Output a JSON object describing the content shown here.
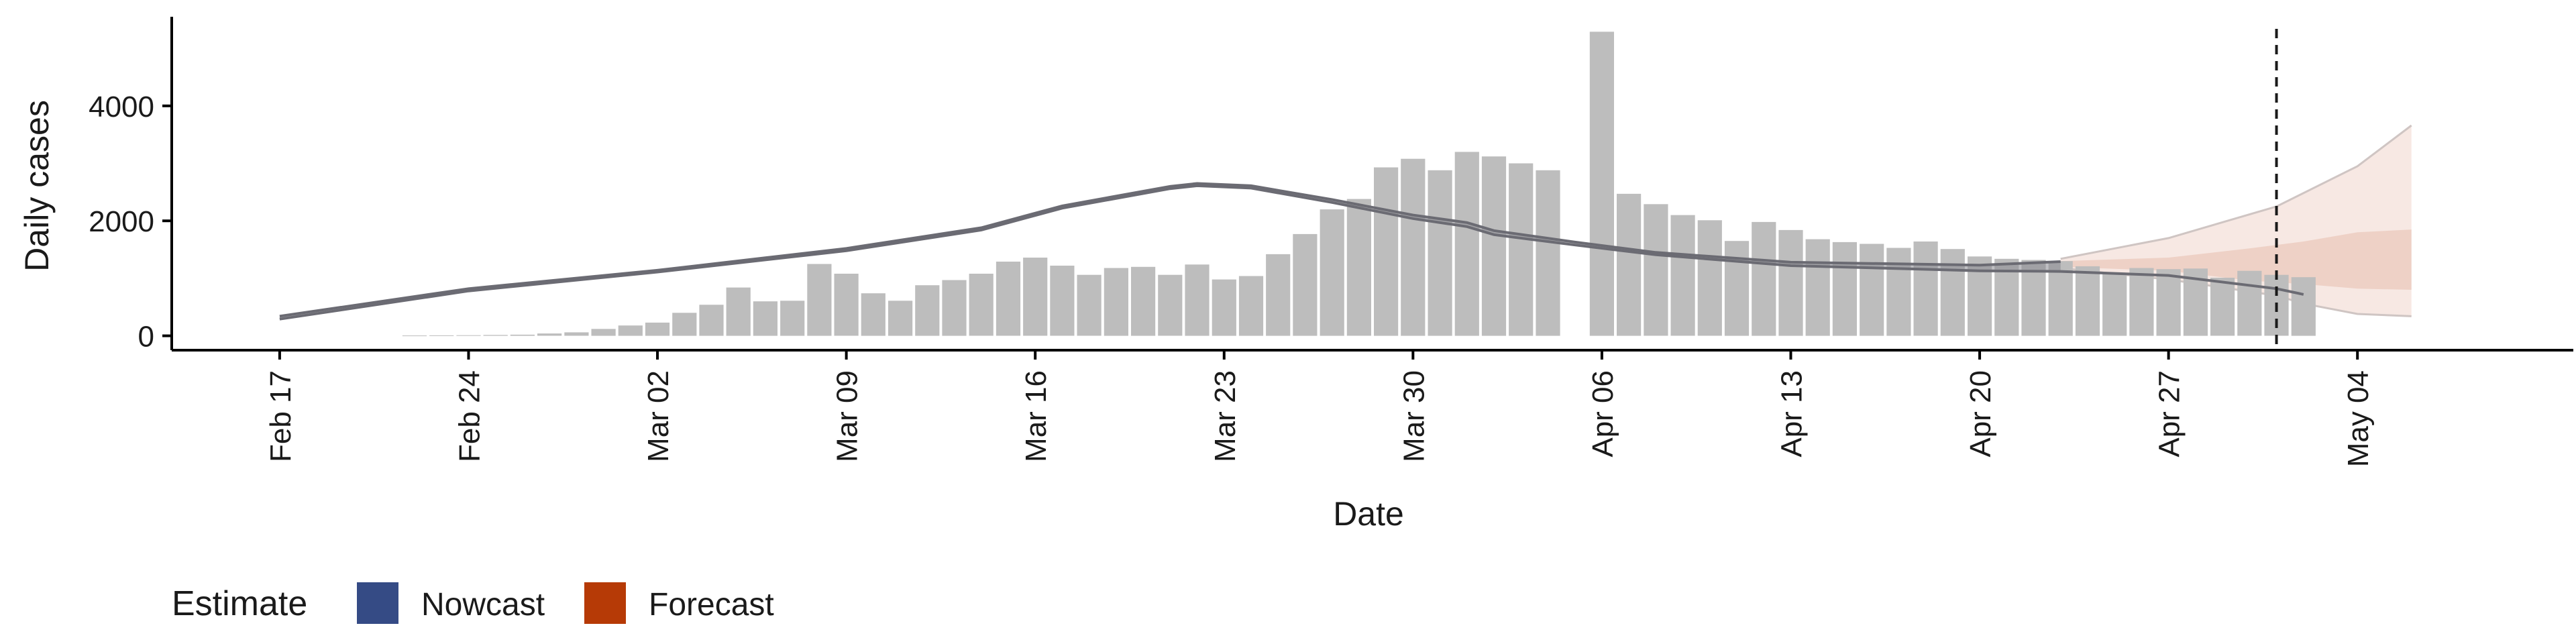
{
  "chart_data": {
    "type": "bar",
    "xlabel": "Date",
    "ylabel": "Daily cases",
    "x_axis": {
      "type": "date",
      "start": "2020-02-17",
      "ticks": [
        {
          "date": "2020-02-17",
          "label": "Feb 17"
        },
        {
          "date": "2020-02-24",
          "label": "Feb 24"
        },
        {
          "date": "2020-03-02",
          "label": "Mar 02"
        },
        {
          "date": "2020-03-09",
          "label": "Mar 09"
        },
        {
          "date": "2020-03-16",
          "label": "Mar 16"
        },
        {
          "date": "2020-03-23",
          "label": "Mar 23"
        },
        {
          "date": "2020-03-30",
          "label": "Mar 30"
        },
        {
          "date": "2020-04-06",
          "label": "Apr 06"
        },
        {
          "date": "2020-04-13",
          "label": "Apr 13"
        },
        {
          "date": "2020-04-20",
          "label": "Apr 20"
        },
        {
          "date": "2020-04-27",
          "label": "Apr 27"
        },
        {
          "date": "2020-05-04",
          "label": "May 04"
        }
      ],
      "range": [
        "2020-02-13",
        "2020-05-12"
      ]
    },
    "y_axis": {
      "ticks": [
        {
          "value": 0,
          "label": "0"
        },
        {
          "value": 2000,
          "label": "2000"
        },
        {
          "value": 4000,
          "label": "4000"
        }
      ],
      "range": [
        -250,
        5550
      ]
    },
    "grid": false,
    "vline_date": "2020-05-01",
    "bars": [
      {
        "date": "2020-02-22",
        "value": 5
      },
      {
        "date": "2020-02-23",
        "value": 8
      },
      {
        "date": "2020-02-24",
        "value": 10
      },
      {
        "date": "2020-02-25",
        "value": 15
      },
      {
        "date": "2020-02-26",
        "value": 20
      },
      {
        "date": "2020-02-27",
        "value": 40
      },
      {
        "date": "2020-02-28",
        "value": 60
      },
      {
        "date": "2020-02-29",
        "value": 120
      },
      {
        "date": "2020-03-01",
        "value": 180
      },
      {
        "date": "2020-03-02",
        "value": 230
      },
      {
        "date": "2020-03-03",
        "value": 400
      },
      {
        "date": "2020-03-04",
        "value": 540
      },
      {
        "date": "2020-03-05",
        "value": 840
      },
      {
        "date": "2020-03-06",
        "value": 600
      },
      {
        "date": "2020-03-07",
        "value": 610
      },
      {
        "date": "2020-03-08",
        "value": 1250
      },
      {
        "date": "2020-03-09",
        "value": 1080
      },
      {
        "date": "2020-03-10",
        "value": 740
      },
      {
        "date": "2020-03-11",
        "value": 610
      },
      {
        "date": "2020-03-12",
        "value": 880
      },
      {
        "date": "2020-03-13",
        "value": 970
      },
      {
        "date": "2020-03-14",
        "value": 1080
      },
      {
        "date": "2020-03-15",
        "value": 1290
      },
      {
        "date": "2020-03-16",
        "value": 1360
      },
      {
        "date": "2020-03-17",
        "value": 1220
      },
      {
        "date": "2020-03-18",
        "value": 1060
      },
      {
        "date": "2020-03-19",
        "value": 1180
      },
      {
        "date": "2020-03-20",
        "value": 1200
      },
      {
        "date": "2020-03-21",
        "value": 1060
      },
      {
        "date": "2020-03-22",
        "value": 1240
      },
      {
        "date": "2020-03-23",
        "value": 980
      },
      {
        "date": "2020-03-24",
        "value": 1040
      },
      {
        "date": "2020-03-25",
        "value": 1420
      },
      {
        "date": "2020-03-26",
        "value": 1770
      },
      {
        "date": "2020-03-27",
        "value": 2200
      },
      {
        "date": "2020-03-28",
        "value": 2380
      },
      {
        "date": "2020-03-29",
        "value": 2930
      },
      {
        "date": "2020-03-30",
        "value": 3080
      },
      {
        "date": "2020-03-31",
        "value": 2880
      },
      {
        "date": "2020-04-01",
        "value": 3200
      },
      {
        "date": "2020-04-02",
        "value": 3120
      },
      {
        "date": "2020-04-03",
        "value": 3000
      },
      {
        "date": "2020-04-04",
        "value": 2880
      },
      {
        "date": "2020-04-06",
        "value": 5290
      },
      {
        "date": "2020-04-07",
        "value": 2470
      },
      {
        "date": "2020-04-08",
        "value": 2290
      },
      {
        "date": "2020-04-09",
        "value": 2100
      },
      {
        "date": "2020-04-10",
        "value": 2010
      },
      {
        "date": "2020-04-11",
        "value": 1650
      },
      {
        "date": "2020-04-12",
        "value": 1980
      },
      {
        "date": "2020-04-13",
        "value": 1840
      },
      {
        "date": "2020-04-14",
        "value": 1680
      },
      {
        "date": "2020-04-15",
        "value": 1630
      },
      {
        "date": "2020-04-16",
        "value": 1600
      },
      {
        "date": "2020-04-17",
        "value": 1530
      },
      {
        "date": "2020-04-18",
        "value": 1640
      },
      {
        "date": "2020-04-19",
        "value": 1510
      },
      {
        "date": "2020-04-20",
        "value": 1380
      },
      {
        "date": "2020-04-21",
        "value": 1340
      },
      {
        "date": "2020-04-22",
        "value": 1320
      },
      {
        "date": "2020-04-23",
        "value": 1300
      },
      {
        "date": "2020-04-24",
        "value": 1210
      },
      {
        "date": "2020-04-25",
        "value": 1090
      },
      {
        "date": "2020-04-26",
        "value": 1180
      },
      {
        "date": "2020-04-27",
        "value": 1160
      },
      {
        "date": "2020-04-28",
        "value": 1170
      },
      {
        "date": "2020-04-29",
        "value": 1010
      },
      {
        "date": "2020-04-30",
        "value": 1130
      },
      {
        "date": "2020-05-01",
        "value": 1060
      },
      {
        "date": "2020-05-02",
        "value": 1020
      }
    ],
    "series": [
      {
        "role": "nowcast-upper",
        "points": [
          [
            "2020-02-17",
            340
          ],
          [
            "2020-02-24",
            820
          ],
          [
            "2020-03-02",
            1140
          ],
          [
            "2020-03-09",
            1520
          ],
          [
            "2020-03-14",
            1880
          ],
          [
            "2020-03-17",
            2260
          ],
          [
            "2020-03-21",
            2600
          ],
          [
            "2020-03-22",
            2650
          ],
          [
            "2020-03-24",
            2610
          ],
          [
            "2020-03-27",
            2370
          ],
          [
            "2020-03-30",
            2100
          ],
          [
            "2020-04-01",
            1970
          ],
          [
            "2020-04-02",
            1830
          ],
          [
            "2020-04-05",
            1630
          ],
          [
            "2020-04-08",
            1450
          ],
          [
            "2020-04-13",
            1280
          ],
          [
            "2020-04-20",
            1230
          ],
          [
            "2020-04-23",
            1290
          ]
        ]
      },
      {
        "role": "nowcast-lower",
        "points": [
          [
            "2020-02-17",
            290
          ],
          [
            "2020-02-24",
            780
          ],
          [
            "2020-03-02",
            1110
          ],
          [
            "2020-03-09",
            1480
          ],
          [
            "2020-03-14",
            1840
          ],
          [
            "2020-03-17",
            2220
          ],
          [
            "2020-03-21",
            2560
          ],
          [
            "2020-03-22",
            2610
          ],
          [
            "2020-03-24",
            2570
          ],
          [
            "2020-03-27",
            2320
          ],
          [
            "2020-03-30",
            2040
          ],
          [
            "2020-04-01",
            1900
          ],
          [
            "2020-04-02",
            1760
          ],
          [
            "2020-04-05",
            1580
          ],
          [
            "2020-04-08",
            1410
          ],
          [
            "2020-04-13",
            1220
          ],
          [
            "2020-04-20",
            1130
          ],
          [
            "2020-04-23",
            1120
          ],
          [
            "2020-04-27",
            1050
          ],
          [
            "2020-05-01",
            820
          ],
          [
            "2020-05-02",
            720
          ]
        ]
      },
      {
        "role": "forecast-outer-upper",
        "points": [
          [
            "2020-04-23",
            1340
          ],
          [
            "2020-04-27",
            1700
          ],
          [
            "2020-05-01",
            2250
          ],
          [
            "2020-05-04",
            2950
          ],
          [
            "2020-05-06",
            3660
          ]
        ]
      },
      {
        "role": "forecast-inner-upper",
        "points": [
          [
            "2020-04-23",
            1300
          ],
          [
            "2020-04-27",
            1360
          ],
          [
            "2020-04-30",
            1520
          ],
          [
            "2020-05-02",
            1640
          ],
          [
            "2020-05-04",
            1800
          ],
          [
            "2020-05-06",
            1850
          ]
        ]
      },
      {
        "role": "forecast-inner-lower",
        "points": [
          [
            "2020-04-23",
            1200
          ],
          [
            "2020-04-27",
            1130
          ],
          [
            "2020-04-30",
            960
          ],
          [
            "2020-05-02",
            900
          ],
          [
            "2020-05-04",
            820
          ],
          [
            "2020-05-06",
            800
          ]
        ]
      },
      {
        "role": "forecast-outer-lower",
        "points": [
          [
            "2020-04-23",
            1180
          ],
          [
            "2020-04-27",
            980
          ],
          [
            "2020-05-01",
            700
          ],
          [
            "2020-05-02",
            560
          ],
          [
            "2020-05-04",
            380
          ],
          [
            "2020-05-06",
            340
          ]
        ]
      }
    ],
    "legend": {
      "title": "Estimate",
      "position": "bottom-left",
      "items": [
        {
          "label": "Nowcast",
          "color": "#354B85"
        },
        {
          "label": "Forecast",
          "color": "#B63A06"
        }
      ]
    },
    "colors": {
      "bar": "#BDBDBD",
      "nowcast_line": "#6B6B73",
      "forecast_outer": "#F7E8E3",
      "forecast_inner": "#EED1C6",
      "forecast_edge": "#CFC5C3"
    }
  }
}
